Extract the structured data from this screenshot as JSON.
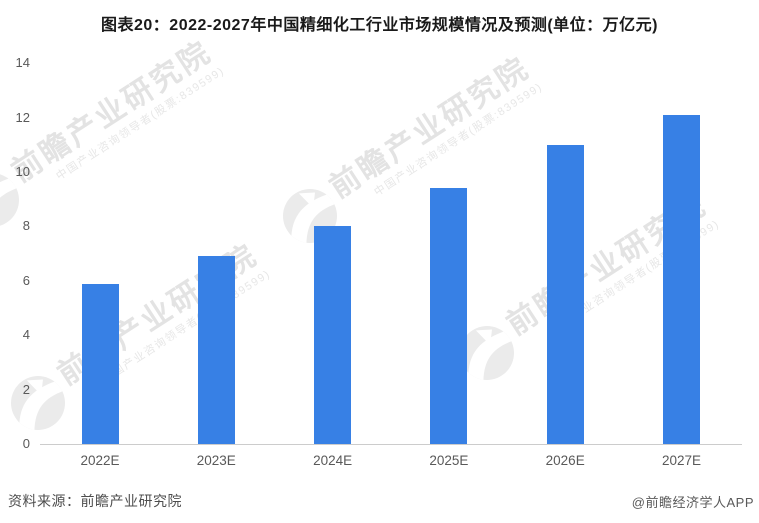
{
  "title": "图表20：2022-2027年中国精细化工行业市场规模情况及预测(单位：万亿元)",
  "chart_data": {
    "type": "bar",
    "title": "图表20：2022-2027年中国精细化工行业市场规模情况及预测(单位：万亿元)",
    "categories": [
      "2022E",
      "2023E",
      "2024E",
      "2025E",
      "2026E",
      "2027E"
    ],
    "values": [
      5.9,
      6.9,
      8.0,
      9.4,
      11.0,
      12.1
    ],
    "unit": "万亿元",
    "xlabel": "",
    "ylabel": "",
    "ylim": [
      0,
      14
    ],
    "yticks": [
      0,
      2,
      4,
      6,
      8,
      10,
      12,
      14
    ],
    "grid": false,
    "legend": "none",
    "bar_color": "#3780e5",
    "axis_line_color": "#cccccc"
  },
  "footer": {
    "source": "资料来源：前瞻产业研究院",
    "credit": "@前瞻经济学人APP"
  },
  "watermark": {
    "brand_text": "前瞻产业研究院",
    "tagline": "中国产业咨询领导者(股票:839599)",
    "logo": "qianzhan-circle-logo",
    "color": "#e3e3e3"
  }
}
